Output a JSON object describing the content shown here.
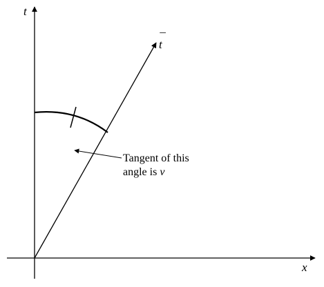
{
  "axes": {
    "vertical_label": "t",
    "horizontal_label": "x",
    "slanted_label": "t",
    "slanted_label_overbar": "¯"
  },
  "annotation": {
    "line1": "Tangent of this",
    "line2_prefix": "angle is ",
    "line2_variable": "v"
  }
}
